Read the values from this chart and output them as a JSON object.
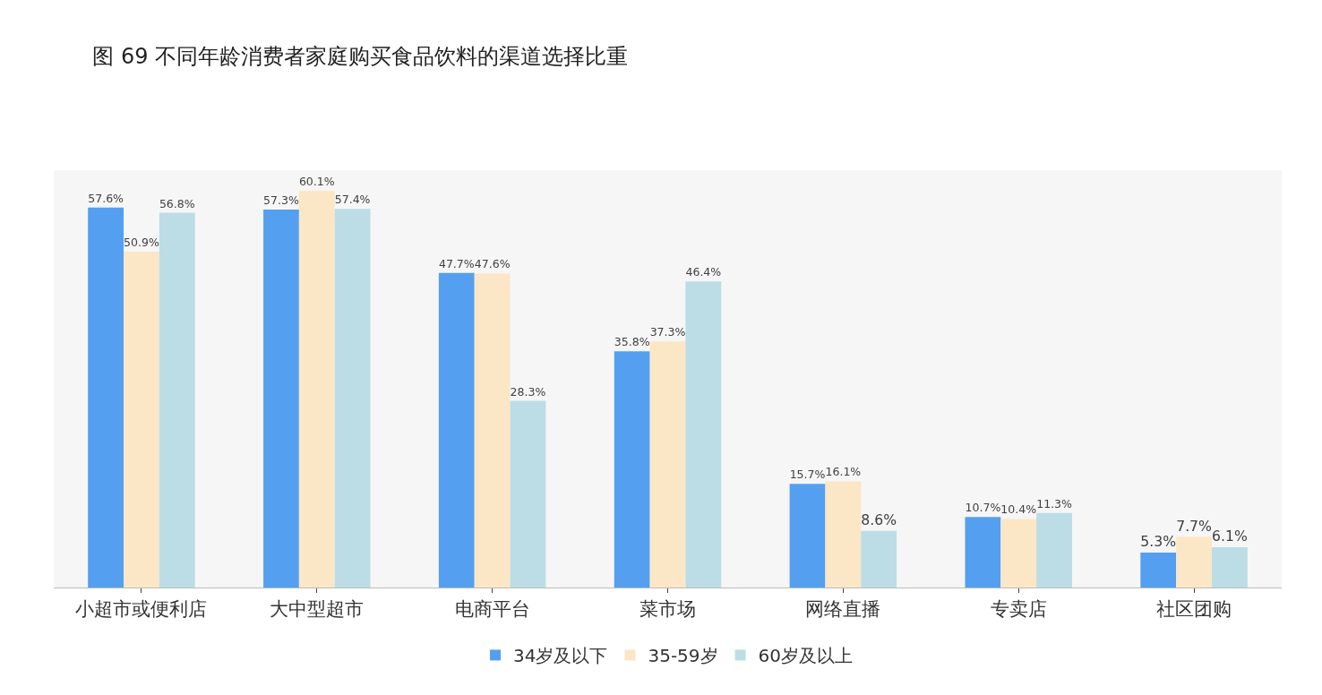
{
  "chart_data": {
    "type": "bar",
    "title": "图 69 不同年龄消费者家庭购买食品饮料的渠道选择比重",
    "categories": [
      "小超市或便利店",
      "大中型超市",
      "电商平台",
      "菜市场",
      "网络直播",
      "专卖店",
      "社区团购"
    ],
    "series": [
      {
        "name": "34岁及以下",
        "color": "#559ff0",
        "values": [
          57.6,
          57.3,
          47.7,
          35.8,
          15.7,
          10.7,
          5.3
        ],
        "value_labels": [
          "57.6%",
          "57.3%",
          "47.7%",
          "35.8%",
          "15.7%",
          "10.7%",
          "5.3%"
        ]
      },
      {
        "name": "35-59岁",
        "color": "#fbe6c6",
        "values": [
          50.9,
          60.1,
          47.6,
          37.3,
          16.1,
          10.4,
          7.7
        ],
        "value_labels": [
          "50.9%",
          "60.1%",
          "47.6%",
          "37.3%",
          "16.1%",
          "10.4%",
          "7.7%"
        ]
      },
      {
        "name": "60岁及以上",
        "color": "#bcdde5",
        "values": [
          56.8,
          57.4,
          28.3,
          46.4,
          8.6,
          11.3,
          6.1
        ],
        "value_labels": [
          "56.8%",
          "57.4%",
          "28.3%",
          "46.4%",
          "8.6%",
          "11.3%",
          "6.1%"
        ]
      }
    ],
    "legend": "bottom",
    "grid": false
  }
}
